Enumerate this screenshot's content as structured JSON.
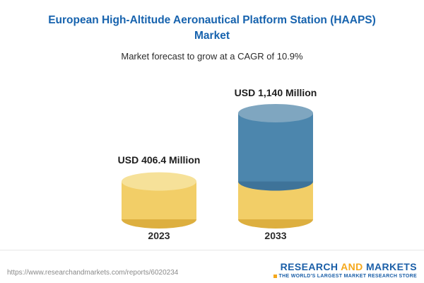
{
  "header": {
    "title_line1": "European High-Altitude Aeronautical Platform Station (HAAPS)",
    "title_line2": "Market",
    "subtitle": "Market forecast to grow at a CAGR of 10.9%"
  },
  "chart_data": {
    "type": "bar",
    "title": "European High-Altitude Aeronautical Platform Station (HAAPS) Market",
    "subtitle": "Market forecast to grow at a CAGR of 10.9%",
    "categories": [
      "2023",
      "2033"
    ],
    "values": [
      406.4,
      1140
    ],
    "value_labels": [
      "USD 406.4 Million",
      "USD 1,140 Million"
    ],
    "unit": "USD Million",
    "cagr": "10.9%",
    "ylim": [
      0,
      1140
    ],
    "grid": "off",
    "legend": "none",
    "bar_style": "3d-cylinder",
    "note": "2033 cylinder shows 2023 base value as gold segment with blue growth segment above"
  },
  "colors": {
    "title_blue": "#1763AE",
    "gold_body": "#F2CE67",
    "gold_dark": "#DDAF3F",
    "gold_top": "#F6E199",
    "blue_body": "#4C86AD",
    "blue_dark": "#3E7399",
    "blue_top": "#7FA6C0",
    "logo_blue": "#1B5FA8",
    "logo_orange": "#F5A81C"
  },
  "footer": {
    "url": "https://www.researchandmarkets.com/reports/6020234",
    "logo": {
      "research": "RESEARCH ",
      "and": "AND",
      "markets": " MARKETS",
      "tagline": "THE WORLD'S LARGEST MARKET RESEARCH STORE"
    }
  }
}
